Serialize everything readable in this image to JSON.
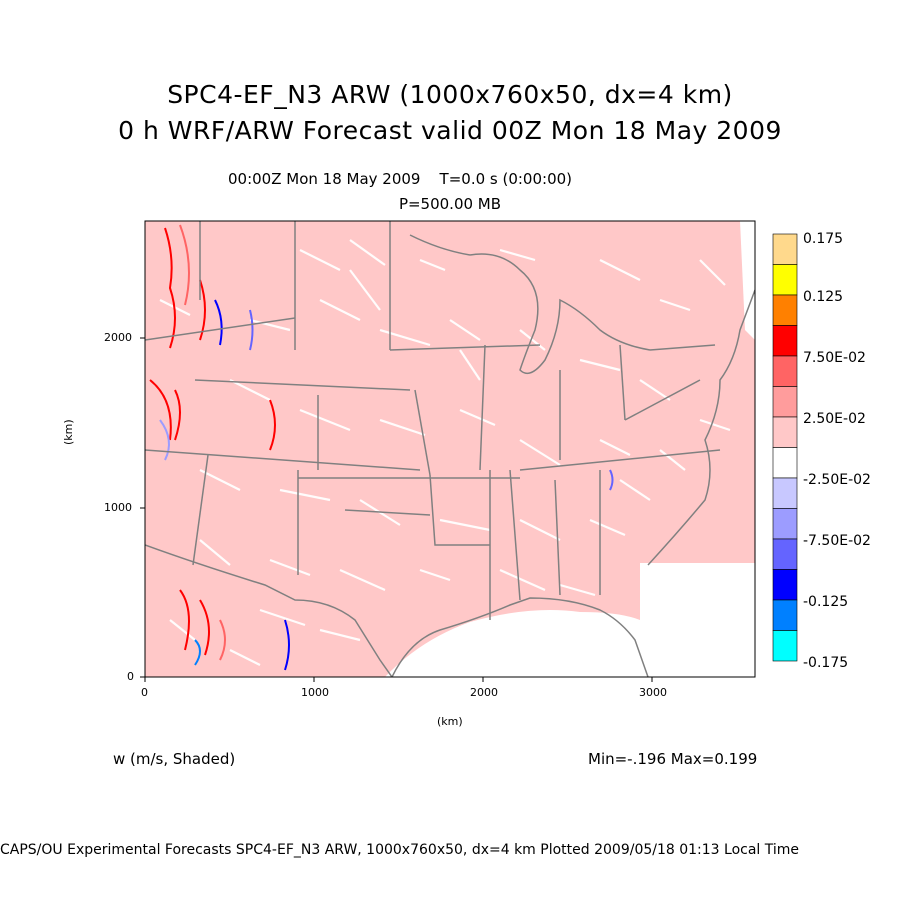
{
  "title_line1": "SPC4-EF_N3 ARW (1000x760x50, dx=4 km)",
  "title_line2": "0 h WRF/ARW Forecast valid 00Z Mon 18 May 2009",
  "subtitle_time": "00:00Z Mon 18 May 2009    T=0.0 s (0:00:00)",
  "subtitle_level": "P=500.00 MB",
  "x_axis_label": "(km)",
  "y_axis_label": "(km)",
  "x_ticks": [
    "0",
    "1000",
    "2000",
    "3000"
  ],
  "y_ticks": [
    "0",
    "1000",
    "2000"
  ],
  "variable_label": "w (m/s, Shaded)",
  "minmax_label": "Min=-.196 Max=0.199",
  "footer": "CAPS/OU Experimental Forecasts  SPC4-EF_N3 ARW, 1000x760x50, dx=4 km  Plotted 2009/05/18 01:13 Local Time",
  "colorbar": {
    "labels": [
      "0.175",
      "0.125",
      "7.50E-02",
      "2.50E-02",
      "-2.50E-02",
      "-7.50E-02",
      "-0.125",
      "-0.175"
    ],
    "colors": [
      "#ffd98c",
      "#ffff00",
      "#ff8000",
      "#ff0000",
      "#ff6464",
      "#ff9c9c",
      "#ffc8c8",
      "#ffffff",
      "#c8c8ff",
      "#9c9cff",
      "#6464ff",
      "#0000ff",
      "#0080ff",
      "#00ffff"
    ]
  },
  "colors": {
    "field_background": "#ffc8c8",
    "map_lines": "#808080"
  }
}
